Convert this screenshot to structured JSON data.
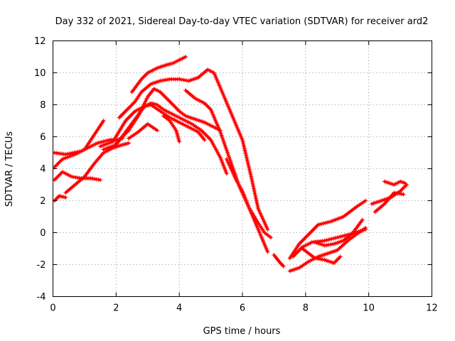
{
  "chart_data": {
    "type": "scatter",
    "title": "Day 332 of 2021, Sidereal Day-to-day VTEC variation (SDTVAR) for receiver ard2",
    "xlabel": "GPS time / hours",
    "ylabel": "SDTVAR / TECUs",
    "xlim": [
      0,
      12
    ],
    "ylim": [
      -4,
      12
    ],
    "xticks": [
      "0",
      "2",
      "4",
      "6",
      "8",
      "10",
      "12"
    ],
    "yticks": [
      "-4",
      "-2",
      "0",
      "2",
      "4",
      "6",
      "8",
      "10",
      "12"
    ],
    "grid": true,
    "marker": "plus",
    "color": "#ff0000",
    "series": [
      {
        "x": [
          0.05,
          0.4,
          0.9,
          1.2,
          1.4,
          1.6,
          1.8,
          2.0,
          2.2
        ],
        "y": [
          5.0,
          4.9,
          5.1,
          5.4,
          5.6,
          5.7,
          5.8,
          5.8,
          5.9
        ]
      },
      {
        "x": [
          0.05,
          0.3,
          0.6,
          0.9,
          1.2,
          1.5
        ],
        "y": [
          3.3,
          3.8,
          3.5,
          3.4,
          3.4,
          3.3
        ]
      },
      {
        "x": [
          0.05,
          0.2,
          0.4
        ],
        "y": [
          2.0,
          2.3,
          2.2
        ]
      },
      {
        "x": [
          0.05,
          0.3,
          0.7,
          1.0,
          1.3,
          1.6
        ],
        "y": [
          4.1,
          4.6,
          4.9,
          5.2,
          6.1,
          7.0
        ]
      },
      {
        "x": [
          0.4,
          0.7,
          1.0,
          1.3,
          1.6,
          1.9,
          2.2,
          2.4
        ],
        "y": [
          2.5,
          3.0,
          3.5,
          4.3,
          5.0,
          5.3,
          5.5,
          5.6
        ]
      },
      {
        "x": [
          1.5,
          1.9,
          2.3,
          2.6,
          2.9,
          3.1,
          3.4,
          3.7,
          4.0,
          4.3,
          4.6,
          4.8
        ],
        "y": [
          5.4,
          5.7,
          7.0,
          7.6,
          7.9,
          8.0,
          7.6,
          7.2,
          6.9,
          6.6,
          6.3,
          5.8
        ]
      },
      {
        "x": [
          1.6,
          2.0,
          2.3,
          2.6,
          2.9,
          3.1,
          3.3,
          3.5,
          3.7,
          4.0,
          4.2,
          4.4,
          4.7,
          5.0,
          5.3,
          5.5
        ],
        "y": [
          5.2,
          5.5,
          6.3,
          7.1,
          7.9,
          8.1,
          8.0,
          7.7,
          7.5,
          7.2,
          7.0,
          6.8,
          6.4,
          5.8,
          4.7,
          3.7
        ]
      },
      {
        "x": [
          2.0,
          2.4,
          2.7,
          3.0,
          3.2,
          3.4,
          3.6,
          3.8,
          4.0,
          4.2,
          4.5,
          4.8,
          5.0,
          5.3
        ],
        "y": [
          5.6,
          6.4,
          7.3,
          8.5,
          9.0,
          8.8,
          8.4,
          8.0,
          7.6,
          7.3,
          7.1,
          6.9,
          6.7,
          6.4
        ]
      },
      {
        "x": [
          2.1,
          2.4,
          2.6,
          2.8,
          3.1,
          3.4,
          3.7,
          4.0,
          4.3,
          4.6,
          4.9,
          5.1,
          5.4,
          5.7,
          6.0,
          6.3,
          6.5,
          6.8
        ],
        "y": [
          7.2,
          7.8,
          8.2,
          8.8,
          9.3,
          9.5,
          9.6,
          9.6,
          9.5,
          9.7,
          10.2,
          10.0,
          8.6,
          7.2,
          5.8,
          3.3,
          1.5,
          0.2
        ]
      },
      {
        "x": [
          2.5,
          2.8,
          3.0,
          3.3,
          3.6,
          3.8,
          4.0,
          4.2
        ],
        "y": [
          8.8,
          9.6,
          10.0,
          10.3,
          10.5,
          10.6,
          10.8,
          11.0
        ]
      },
      {
        "x": [
          2.4,
          2.7,
          3.0,
          3.3
        ],
        "y": [
          5.9,
          6.3,
          6.8,
          6.4
        ]
      },
      {
        "x": [
          3.5,
          3.7,
          3.9,
          4.0
        ],
        "y": [
          7.3,
          7.0,
          6.4,
          5.7
        ]
      },
      {
        "x": [
          4.2,
          4.5,
          4.8,
          5.0,
          5.3,
          5.6,
          5.9,
          6.2,
          6.5,
          6.8
        ],
        "y": [
          8.9,
          8.4,
          8.1,
          7.7,
          6.3,
          4.6,
          2.9,
          1.6,
          0.2,
          -1.2
        ]
      },
      {
        "x": [
          5.5,
          5.8,
          6.0,
          6.2,
          6.5,
          6.7,
          6.9
        ],
        "y": [
          4.6,
          3.3,
          2.6,
          1.6,
          0.6,
          0.0,
          -0.3
        ]
      },
      {
        "x": [
          7.0,
          7.2,
          7.3
        ],
        "y": [
          -1.4,
          -1.9,
          -2.1
        ]
      },
      {
        "x": [
          7.5,
          7.8,
          8.1,
          8.4,
          8.8,
          9.2,
          9.6,
          9.9
        ],
        "y": [
          -1.6,
          -0.7,
          -0.1,
          0.5,
          0.7,
          1.0,
          1.6,
          2.0
        ]
      },
      {
        "x": [
          7.6,
          7.9,
          8.2,
          8.6,
          9.0,
          9.4,
          9.9
        ],
        "y": [
          -1.5,
          -0.9,
          -0.6,
          -0.5,
          -0.3,
          -0.1,
          0.2
        ]
      },
      {
        "x": [
          7.5,
          7.8,
          8.1,
          8.4,
          8.7,
          9.0,
          9.4,
          9.9
        ],
        "y": [
          -2.4,
          -2.2,
          -1.8,
          -1.5,
          -1.3,
          -1.1,
          -0.4,
          0.3
        ]
      },
      {
        "x": [
          8.3,
          8.6,
          8.9,
          9.2,
          9.5,
          9.8
        ],
        "y": [
          -0.6,
          -0.8,
          -0.7,
          -0.5,
          0.0,
          0.8
        ]
      },
      {
        "x": [
          7.9,
          8.3,
          8.6,
          8.9,
          9.1
        ],
        "y": [
          -1.0,
          -1.6,
          -1.7,
          -1.9,
          -1.5
        ]
      },
      {
        "x": [
          10.1,
          10.4,
          10.7,
          11.0,
          11.2
        ],
        "y": [
          1.8,
          2.0,
          2.2,
          2.6,
          3.0
        ]
      },
      {
        "x": [
          10.2,
          10.5,
          10.8,
          11.1
        ],
        "y": [
          1.3,
          1.8,
          2.5,
          2.4
        ]
      },
      {
        "x": [
          10.5,
          10.8,
          11.0,
          11.15
        ],
        "y": [
          3.2,
          3.0,
          3.2,
          3.1
        ]
      }
    ]
  }
}
